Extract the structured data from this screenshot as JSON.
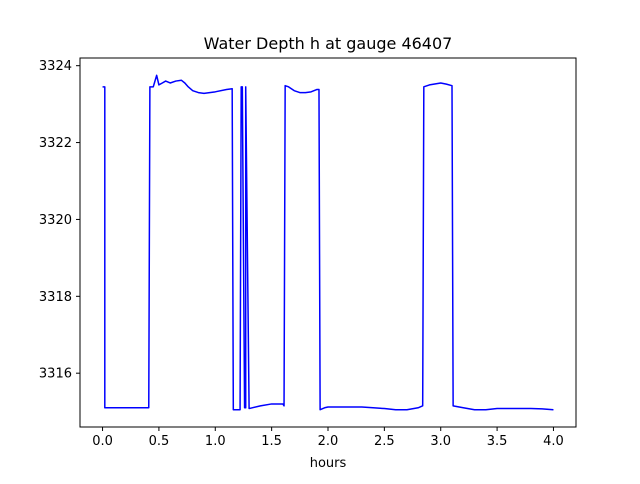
{
  "chart_data": {
    "type": "line",
    "title": "Water Depth h at gauge 46407",
    "xlabel": "hours",
    "ylabel": "",
    "xlim": [
      -0.2,
      4.2
    ],
    "ylim": [
      3314.6,
      3324.2
    ],
    "xticks": [
      0.0,
      0.5,
      1.0,
      1.5,
      2.0,
      2.5,
      3.0,
      3.5,
      4.0
    ],
    "xtick_labels": [
      "0.0",
      "0.5",
      "1.0",
      "1.5",
      "2.0",
      "2.5",
      "3.0",
      "3.5",
      "4.0"
    ],
    "yticks": [
      3316,
      3318,
      3320,
      3322,
      3324
    ],
    "ytick_labels": [
      "3316",
      "3318",
      "3320",
      "3322",
      "3324"
    ],
    "grid": false,
    "legend": "none",
    "series": [
      {
        "color": "#0000ff",
        "x": [
          0.0,
          0.02,
          0.02,
          0.1,
          0.2,
          0.3,
          0.41,
          0.42,
          0.45,
          0.46,
          0.48,
          0.5,
          0.53,
          0.56,
          0.6,
          0.65,
          0.7,
          0.73,
          0.76,
          0.8,
          0.85,
          0.9,
          1.0,
          1.1,
          1.15,
          1.16,
          1.2,
          1.22,
          1.23,
          1.24,
          1.26,
          1.27,
          1.27,
          1.3,
          1.4,
          1.5,
          1.55,
          1.6,
          1.61,
          1.62,
          1.65,
          1.7,
          1.75,
          1.8,
          1.85,
          1.9,
          1.92,
          1.93,
          1.97,
          2.0,
          2.1,
          2.2,
          2.3,
          2.4,
          2.5,
          2.6,
          2.7,
          2.8,
          2.84,
          2.85,
          2.9,
          3.0,
          3.05,
          3.1,
          3.11,
          3.2,
          3.3,
          3.4,
          3.5,
          3.6,
          3.7,
          3.8,
          3.9,
          4.0
        ],
        "y": [
          3323.45,
          3323.45,
          3315.1,
          3315.1,
          3315.1,
          3315.1,
          3315.1,
          3323.45,
          3323.45,
          3323.55,
          3323.75,
          3323.5,
          3323.55,
          3323.6,
          3323.55,
          3323.6,
          3323.62,
          3323.55,
          3323.45,
          3323.35,
          3323.3,
          3323.28,
          3323.32,
          3323.38,
          3323.4,
          3315.05,
          3315.05,
          3315.05,
          3323.45,
          3323.45,
          3315.1,
          3315.1,
          3323.45,
          3315.08,
          3315.15,
          3315.2,
          3315.2,
          3315.2,
          3315.15,
          3323.48,
          3323.45,
          3323.35,
          3323.3,
          3323.3,
          3323.32,
          3323.38,
          3323.38,
          3315.05,
          3315.1,
          3315.12,
          3315.12,
          3315.12,
          3315.12,
          3315.1,
          3315.08,
          3315.05,
          3315.05,
          3315.1,
          3315.15,
          3323.45,
          3323.5,
          3323.55,
          3323.52,
          3323.48,
          3315.15,
          3315.1,
          3315.05,
          3315.05,
          3315.08,
          3315.08,
          3315.08,
          3315.08,
          3315.07,
          3315.05
        ]
      }
    ]
  }
}
